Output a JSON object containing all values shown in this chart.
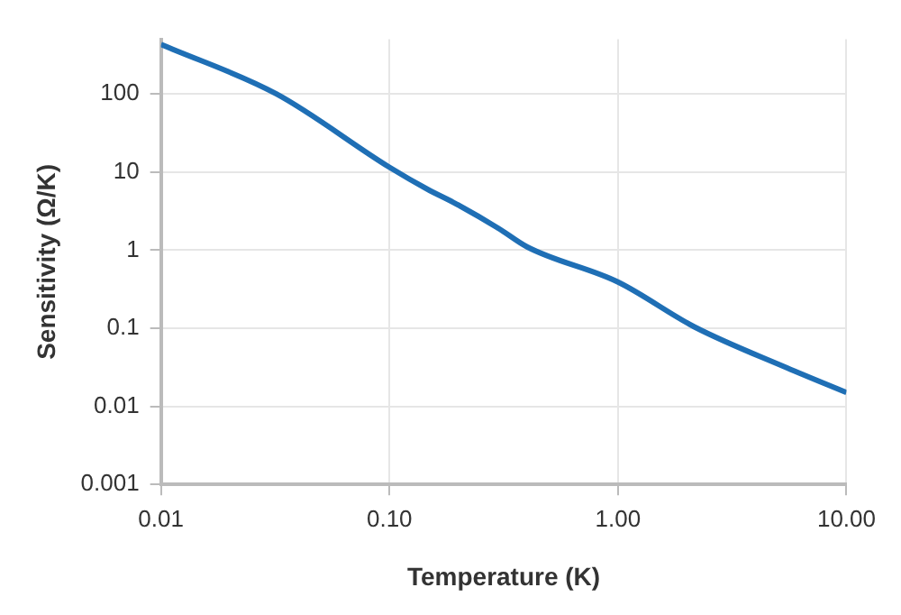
{
  "chart_data": {
    "type": "line",
    "xlabel": "Temperature (K)",
    "ylabel": "Sensitivity (Ω/K)",
    "log": "xy",
    "grid": true,
    "marker": "none",
    "line_style": "solid",
    "xlim": [
      0.01,
      10
    ],
    "xticks": [
      0.01,
      {
        "value": 0.1,
        "label": "0.10"
      },
      {
        "value": 1,
        "label": "1.00"
      },
      {
        "value": 10,
        "label": "10.00"
      }
    ],
    "ylim": [
      0.001,
      500
    ],
    "yticks": [
      0.001,
      0.01,
      0.1,
      1,
      10,
      100
    ],
    "series": [
      {
        "color": "#1f6fb5",
        "x": [
          0.01,
          0.032,
          0.1,
          0.15,
          0.19,
          0.3,
          0.4,
          1,
          2.16,
          5.5,
          10
        ],
        "values": [
          430,
          100,
          11.5,
          5.8,
          4.1,
          1.9,
          1.1,
          0.39,
          0.104,
          0.031,
          0.015
        ]
      }
    ]
  }
}
